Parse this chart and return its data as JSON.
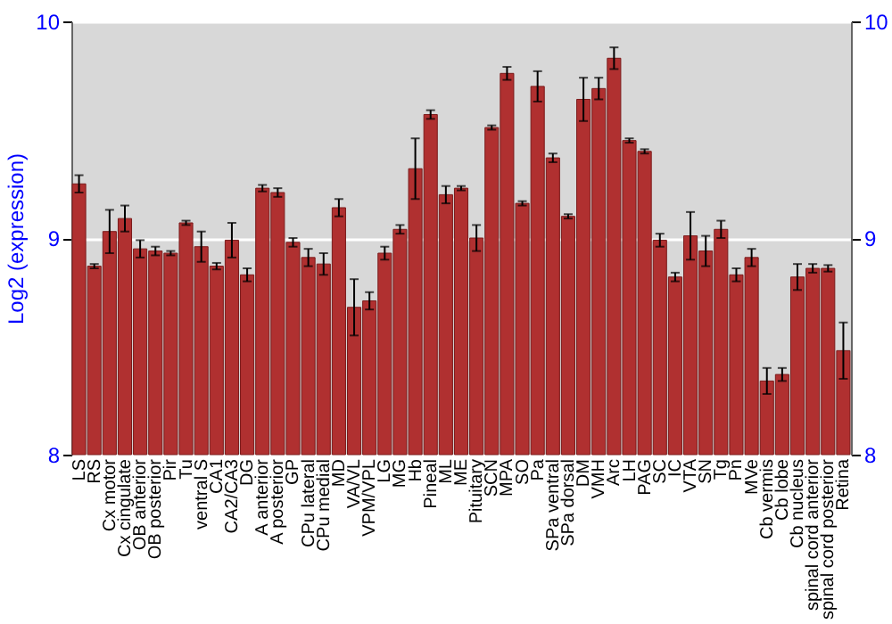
{
  "chart_data": {
    "type": "bar",
    "ylabel": "Log2 (expression)",
    "categories": [
      "LS",
      "RS",
      "Cx motor",
      "Cx cingulate",
      "OB anterior",
      "OB posterior",
      "Pir",
      "Tu",
      "ventral S",
      "CA1",
      "CA2/CA3",
      "DG",
      "A anterior",
      "A posterior",
      "GP",
      "CPu lateral",
      "CPu medial",
      "MD",
      "VA/VL",
      "VPM/VPL",
      "LG",
      "MG",
      "Hb",
      "Pineal",
      "ML",
      "ME",
      "Pituitary",
      "SCN",
      "MPA",
      "SO",
      "Pa",
      "SPa ventral",
      "SPa dorsal",
      "DM",
      "VMH",
      "Arc",
      "LH",
      "PAG",
      "SC",
      "IC",
      "VTA",
      "SN",
      "Tg",
      "Pn",
      "MVe",
      "Cb vermis",
      "Cb lobe",
      "Cb nucleus",
      "spinal cord anterior",
      "spinal cord posterior",
      "Retina"
    ],
    "values": [
      9.25,
      8.87,
      9.03,
      9.09,
      8.95,
      8.94,
      8.93,
      9.07,
      8.96,
      8.87,
      8.99,
      8.83,
      9.23,
      9.21,
      8.98,
      8.91,
      8.88,
      9.14,
      8.68,
      8.71,
      8.93,
      9.04,
      9.32,
      9.57,
      9.2,
      9.23,
      9.0,
      9.51,
      9.76,
      9.16,
      9.7,
      9.37,
      9.1,
      9.64,
      9.69,
      9.83,
      9.45,
      9.4,
      8.99,
      8.82,
      9.01,
      8.94,
      9.04,
      8.83,
      8.91,
      8.34,
      8.37,
      8.82,
      8.86,
      8.86,
      8.48
    ],
    "errors": [
      0.04,
      0.01,
      0.1,
      0.06,
      0.04,
      0.02,
      0.01,
      0.01,
      0.07,
      0.015,
      0.08,
      0.03,
      0.015,
      0.02,
      0.02,
      0.04,
      0.05,
      0.04,
      0.13,
      0.04,
      0.03,
      0.02,
      0.14,
      0.02,
      0.04,
      0.01,
      0.06,
      0.01,
      0.03,
      0.01,
      0.07,
      0.02,
      0.01,
      0.1,
      0.05,
      0.05,
      0.01,
      0.01,
      0.03,
      0.02,
      0.11,
      0.07,
      0.04,
      0.03,
      0.04,
      0.06,
      0.03,
      0.06,
      0.02,
      0.015,
      0.13
    ],
    "color": "#b03030",
    "ylim": [
      8,
      10
    ],
    "yticks": [
      8,
      9,
      10
    ],
    "y2lim": [
      8,
      10
    ],
    "y2ticks": [
      8,
      9,
      10
    ],
    "grid": "y"
  }
}
